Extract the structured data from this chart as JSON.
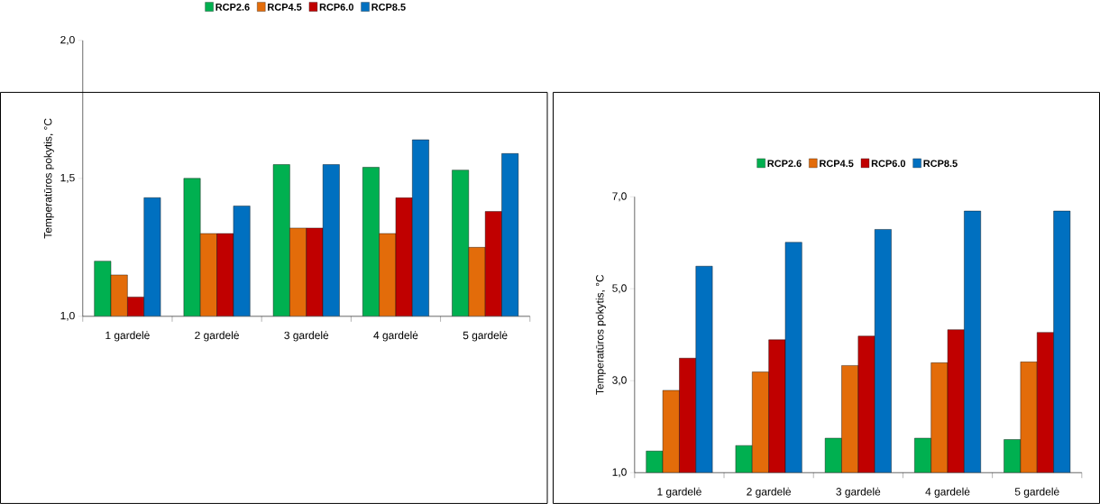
{
  "chart_data": [
    {
      "type": "bar",
      "ylabel": "Temperatūros pokytis, °C",
      "categories": [
        "1 gardelė",
        "2 gardelė",
        "3 gardelė",
        "4 gardelė",
        "5 gardelė"
      ],
      "series": [
        {
          "name": "RCP2.6",
          "color": "#00b050",
          "values": [
            1.2,
            1.5,
            1.55,
            1.54,
            1.53
          ]
        },
        {
          "name": "RCP4.5",
          "color": "#e36c0a",
          "values": [
            1.15,
            1.3,
            1.32,
            1.3,
            1.25
          ]
        },
        {
          "name": "RCP6.0",
          "color": "#c00000",
          "values": [
            1.07,
            1.3,
            1.32,
            1.43,
            1.38
          ]
        },
        {
          "name": "RCP8.5",
          "color": "#0070c0",
          "values": [
            1.43,
            1.4,
            1.55,
            1.64,
            1.59
          ]
        }
      ],
      "ylim": [
        1.0,
        2.0
      ],
      "yticks": [
        {
          "value": 1.0,
          "label": "1,0"
        },
        {
          "value": 1.5,
          "label": "1,5"
        },
        {
          "value": 2.0,
          "label": "2,0"
        }
      ],
      "legend": "top"
    },
    {
      "type": "bar",
      "ylabel": "Temperatūros pokytis, °C",
      "categories": [
        "1 gardelė",
        "2 gardelė",
        "3 gardelė",
        "4 gardelė",
        "5 gardelė"
      ],
      "series": [
        {
          "name": "RCP2.6",
          "color": "#00b050",
          "values": [
            1.47,
            1.59,
            1.75,
            1.75,
            1.72
          ]
        },
        {
          "name": "RCP4.5",
          "color": "#e36c0a",
          "values": [
            2.79,
            3.19,
            3.33,
            3.39,
            3.41
          ]
        },
        {
          "name": "RCP6.0",
          "color": "#c00000",
          "values": [
            3.49,
            3.89,
            3.97,
            4.11,
            4.05
          ]
        },
        {
          "name": "RCP8.5",
          "color": "#0070c0",
          "values": [
            5.49,
            6.01,
            6.29,
            6.69,
            6.69
          ]
        }
      ],
      "ylim": [
        1.0,
        7.0
      ],
      "yticks": [
        {
          "value": 1.0,
          "label": "1,0"
        },
        {
          "value": 3.0,
          "label": "3,0"
        },
        {
          "value": 5.0,
          "label": "5,0"
        },
        {
          "value": 7.0,
          "label": "7,0"
        }
      ],
      "legend": "top"
    }
  ]
}
